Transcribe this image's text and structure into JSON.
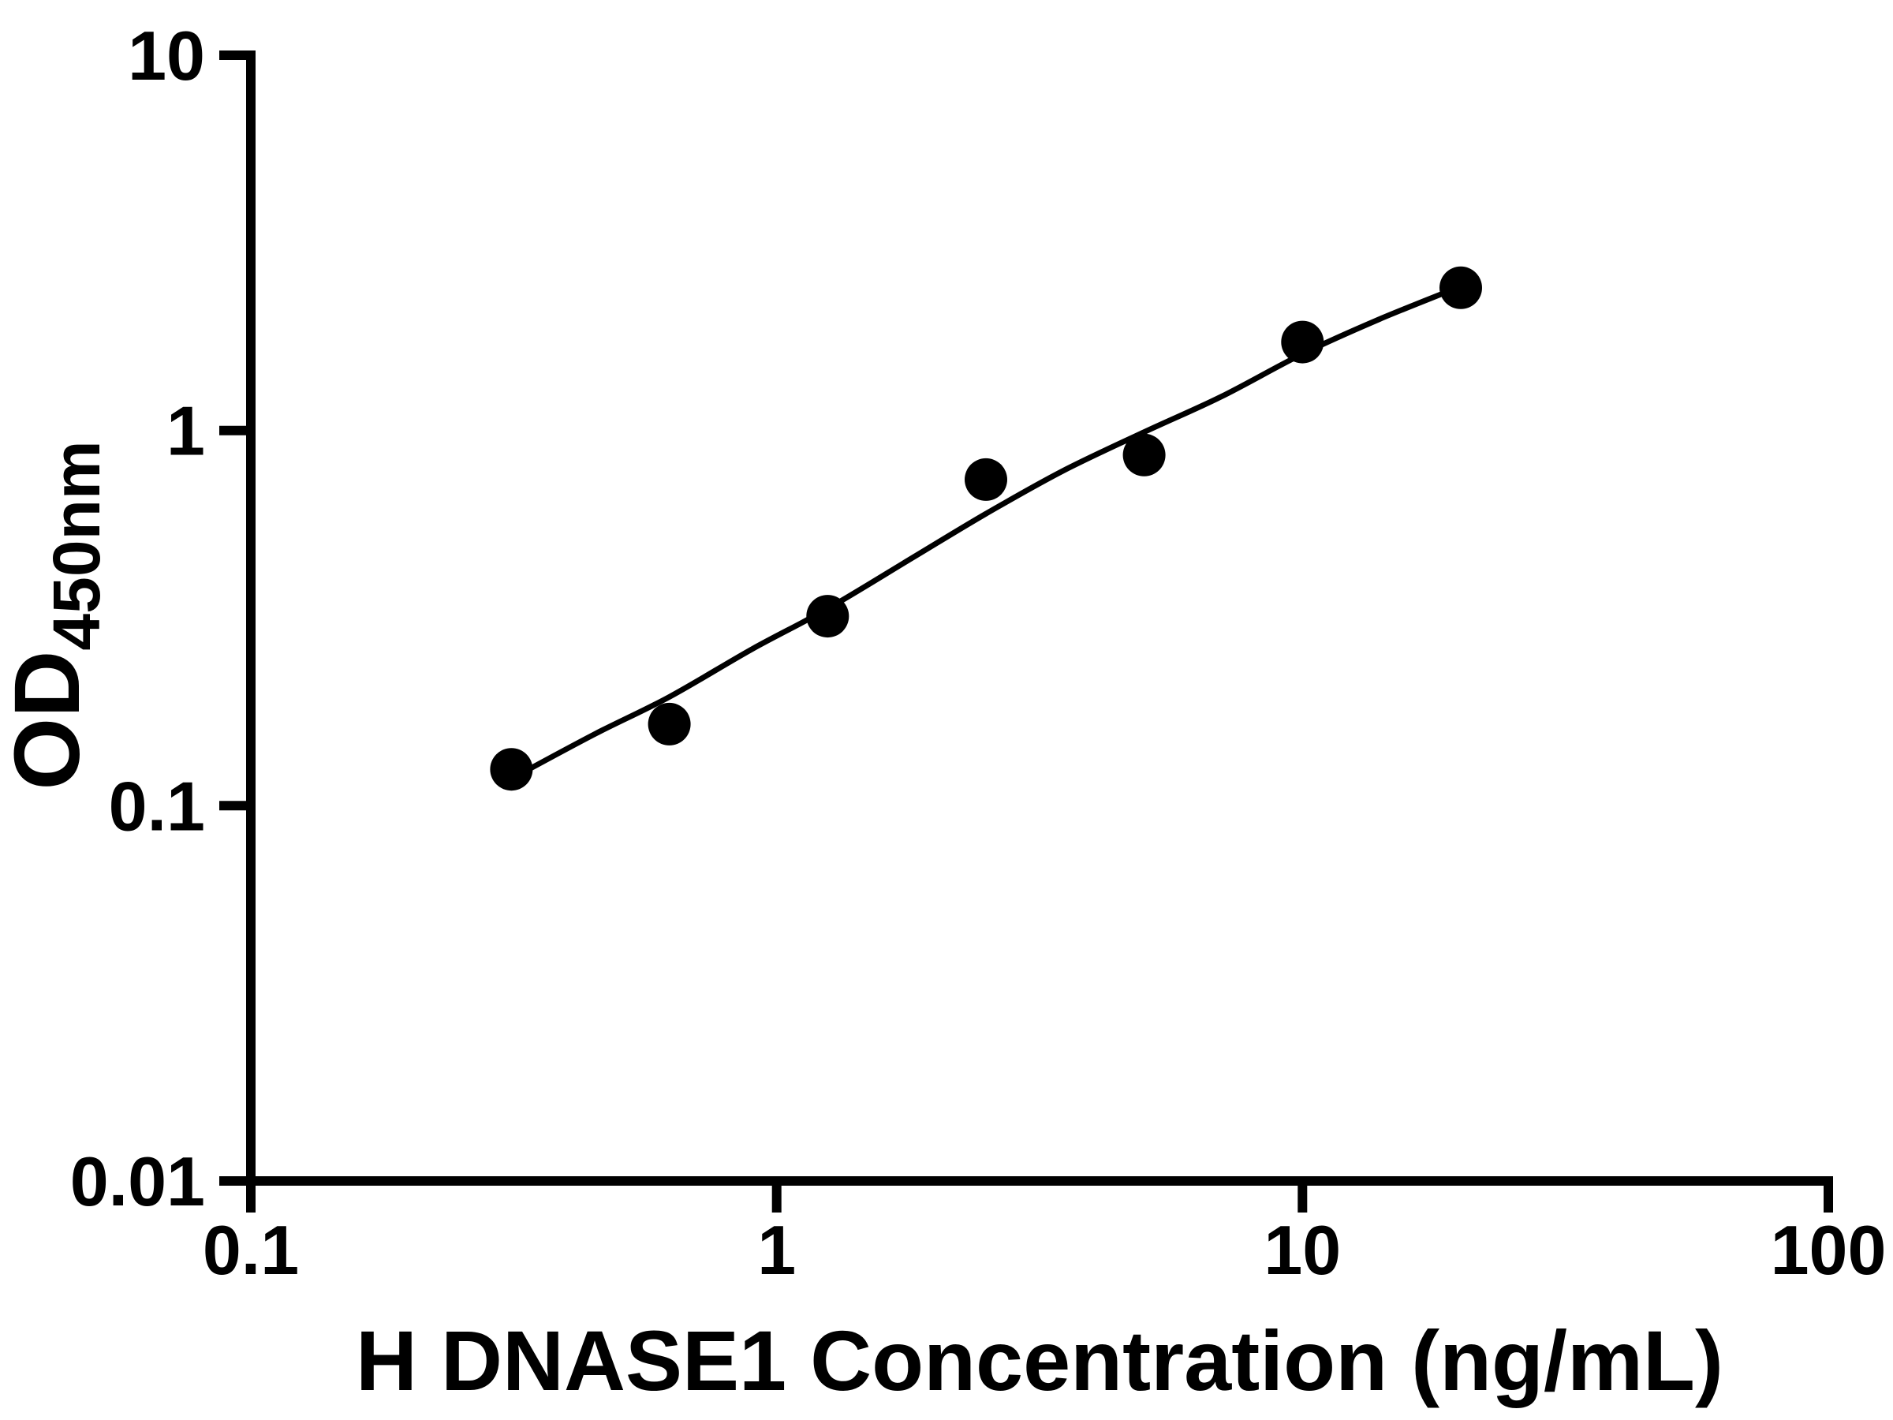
{
  "figure": {
    "kind": "ELISA standard curve",
    "background_color": "#ffffff",
    "foreground_color": "#000000"
  },
  "chart_data": {
    "type": "scatter",
    "title": "",
    "xlabel": "H DNASE1 Concentration (ng/mL)",
    "ylabel": "OD450nm",
    "ylabel_main": "OD",
    "ylabel_subscript": "450nm",
    "x_scale": "log",
    "y_scale": "log",
    "xlim": [
      0.1,
      100
    ],
    "ylim": [
      0.01,
      10
    ],
    "x_ticks": [
      0.1,
      1,
      10,
      100
    ],
    "x_tick_labels": [
      "0.1",
      "1",
      "10",
      "100"
    ],
    "y_ticks": [
      0.01,
      0.1,
      1,
      10
    ],
    "y_tick_labels": [
      "0.01",
      "0.1",
      "1",
      "10"
    ],
    "grid": false,
    "legend": "none",
    "marker_color": "#000000",
    "line_color": "#000000",
    "series": [
      {
        "name": "standard-points",
        "type": "scatter",
        "marker": "filled-circle",
        "color": "#000000",
        "x": [
          0.313,
          0.625,
          1.25,
          2.5,
          5,
          10,
          20
        ],
        "y": [
          0.125,
          0.165,
          0.32,
          0.74,
          0.86,
          1.72,
          2.4
        ]
      },
      {
        "name": "fit-curve",
        "type": "line",
        "color": "#000000",
        "points": [
          [
            0.313,
            0.118
          ],
          [
            0.45,
            0.155
          ],
          [
            0.625,
            0.195
          ],
          [
            0.9,
            0.262
          ],
          [
            1.25,
            0.335
          ],
          [
            1.8,
            0.455
          ],
          [
            2.5,
            0.6
          ],
          [
            3.5,
            0.78
          ],
          [
            5.0,
            0.99
          ],
          [
            7.0,
            1.23
          ],
          [
            10.0,
            1.6
          ],
          [
            14.0,
            1.98
          ],
          [
            20.0,
            2.42
          ]
        ]
      }
    ]
  }
}
